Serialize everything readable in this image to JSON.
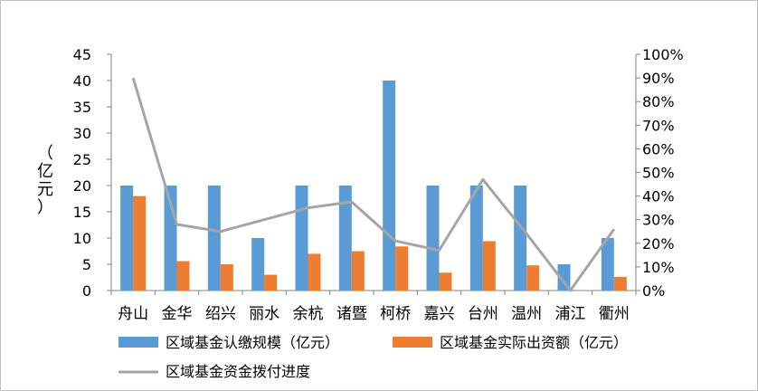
{
  "chart_data": {
    "type": "bar",
    "ylabel": "（亿元）",
    "categories": [
      "舟山",
      "金华",
      "绍兴",
      "丽水",
      "余杭",
      "诸暨",
      "柯桥",
      "嘉兴",
      "台州",
      "温州",
      "浦江",
      "衢州"
    ],
    "series": [
      {
        "name": "区域基金认缴规模（亿元）",
        "type": "bar",
        "axis": "left",
        "color": "#5b9bd5",
        "values": [
          20,
          20,
          20,
          10,
          20,
          20,
          40,
          20,
          20,
          20,
          5,
          10
        ]
      },
      {
        "name": "区域基金实际出资额（亿元）",
        "type": "bar",
        "axis": "left",
        "color": "#ed7d31",
        "values": [
          18,
          5.6,
          5,
          3,
          7,
          7.5,
          8.4,
          3.4,
          9.4,
          4.8,
          0,
          2.6
        ]
      },
      {
        "name": "区域基金资金拨付进度",
        "type": "line",
        "axis": "right",
        "color": "#a5a5a5",
        "values": [
          0.9,
          0.28,
          0.25,
          0.3,
          0.35,
          0.375,
          0.21,
          0.17,
          0.47,
          0.24,
          0,
          0.26
        ]
      }
    ],
    "left_axis": {
      "min": 0,
      "max": 45,
      "ticks": [
        "0",
        "5",
        "10",
        "15",
        "20",
        "25",
        "30",
        "35",
        "40",
        "45"
      ]
    },
    "right_axis": {
      "min": 0,
      "max": 1,
      "ticks": [
        "0%",
        "10%",
        "20%",
        "30%",
        "40%",
        "50%",
        "60%",
        "70%",
        "80%",
        "90%",
        "100%"
      ]
    },
    "grid": false,
    "legend_position": "bottom"
  }
}
